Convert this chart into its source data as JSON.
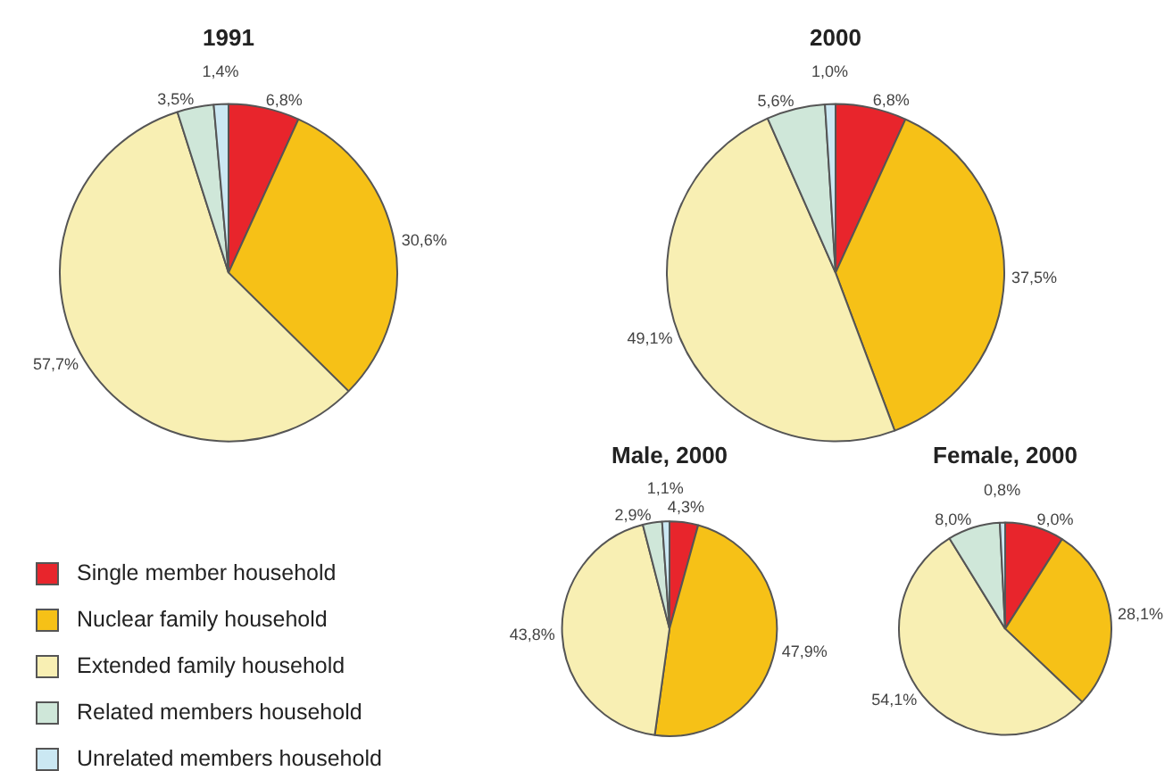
{
  "chart_data": [
    {
      "type": "pie",
      "title": "1991",
      "categories": [
        "Single member household",
        "Nuclear family household",
        "Extended family household",
        "Related members household",
        "Unrelated members household"
      ],
      "values": [
        6.8,
        30.6,
        57.7,
        3.5,
        1.4
      ],
      "value_labels": [
        "6,8%",
        "30,6%",
        "57,7%",
        "3,5%",
        "1,4%"
      ],
      "colors": [
        "#e8252c",
        "#f6c117",
        "#f8efb3",
        "#cfe7d9",
        "#cbe8f3"
      ],
      "legend": "bottom"
    },
    {
      "type": "pie",
      "title": "2000",
      "values": [
        6.8,
        37.5,
        49.1,
        5.6,
        1.0
      ],
      "value_labels": [
        "6,8%",
        "37,5%",
        "49,1%",
        "5,6%",
        "1,0%"
      ],
      "colors": [
        "#e8252c",
        "#f6c117",
        "#f8efb3",
        "#cfe7d9",
        "#cbe8f3"
      ]
    },
    {
      "type": "pie",
      "title": "Male, 2000",
      "values": [
        4.3,
        47.9,
        43.8,
        2.9,
        1.1
      ],
      "value_labels": [
        "4,3%",
        "47,9%",
        "43,8%",
        "2,9%",
        "1,1%"
      ],
      "colors": [
        "#e8252c",
        "#f6c117",
        "#f8efb3",
        "#cfe7d9",
        "#cbe8f3"
      ]
    },
    {
      "type": "pie",
      "title": "Female, 2000",
      "values": [
        9.0,
        28.1,
        54.1,
        8.0,
        0.8
      ],
      "value_labels": [
        "9,0%",
        "28,1%",
        "54,1%",
        "8,0%",
        "0,8%"
      ],
      "colors": [
        "#e8252c",
        "#f6c117",
        "#f8efb3",
        "#cfe7d9",
        "#cbe8f3"
      ]
    }
  ]
}
